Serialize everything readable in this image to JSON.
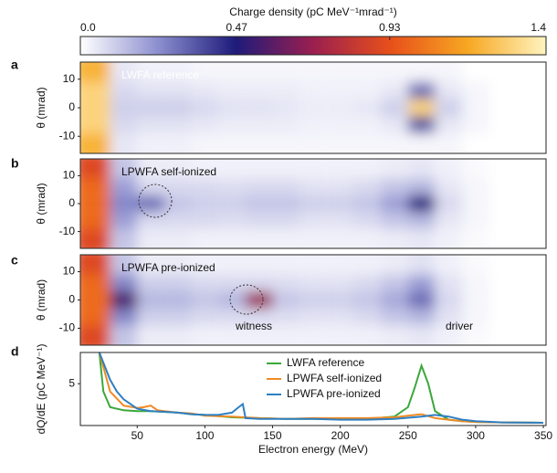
{
  "chart_data": [
    {
      "type": "colorbar",
      "title": "Charge density (pC MeV⁻¹mrad⁻¹)",
      "xlim": [
        0,
        1.4
      ],
      "xticks": [
        {
          "value": 0,
          "label": "0.0"
        },
        0.47,
        0.93,
        1.4
      ],
      "colormap": [
        "#ffffff",
        "#8c8fcf",
        "#1e1b7a",
        "#9b1f4f",
        "#e8501a",
        "#f7a823",
        "#fff4c0"
      ]
    },
    {
      "type": "heatmap",
      "label": "a",
      "annotation": "LWFA reference",
      "ylabel": "θ (mrad)",
      "x": [
        20,
        40,
        60,
        80,
        100,
        120,
        140,
        160,
        180,
        200,
        220,
        240,
        260,
        280,
        300,
        320,
        340
      ],
      "y": [
        12,
        6,
        0,
        -6,
        -12
      ],
      "values": [
        [
          1.2,
          0.05,
          0.03,
          0.03,
          0.02,
          0.02,
          0.02,
          0.02,
          0.02,
          0.02,
          0.02,
          0.02,
          0.02,
          0.02,
          0,
          0,
          0
        ],
        [
          1.3,
          0.08,
          0.06,
          0.06,
          0.05,
          0.04,
          0.04,
          0.04,
          0.03,
          0.03,
          0.03,
          0.05,
          0.3,
          0.05,
          0.02,
          0,
          0
        ],
        [
          1.3,
          0.1,
          0.1,
          0.1,
          0.08,
          0.06,
          0.06,
          0.05,
          0.04,
          0.04,
          0.05,
          0.1,
          1.3,
          0.1,
          0.02,
          0,
          0
        ],
        [
          1.3,
          0.08,
          0.06,
          0.06,
          0.05,
          0.04,
          0.04,
          0.04,
          0.03,
          0.03,
          0.03,
          0.05,
          0.35,
          0.05,
          0.02,
          0,
          0
        ],
        [
          1.2,
          0.05,
          0.03,
          0.03,
          0.02,
          0.02,
          0.02,
          0.02,
          0.02,
          0.02,
          0.02,
          0.02,
          0.02,
          0.02,
          0,
          0,
          0
        ]
      ],
      "xlim": [
        8,
        352
      ],
      "ylim": [
        -16,
        16
      ],
      "yticks": [
        10,
        0,
        -10
      ]
    },
    {
      "type": "heatmap",
      "label": "b",
      "annotation": "LPWFA self-ionized",
      "ylabel": "θ (mrad)",
      "x": [
        20,
        40,
        60,
        80,
        100,
        120,
        140,
        160,
        180,
        200,
        220,
        240,
        260,
        280,
        300,
        320,
        340
      ],
      "y": [
        12,
        6,
        0,
        -6,
        -12
      ],
      "values": [
        [
          0.9,
          0.12,
          0.04,
          0.04,
          0.03,
          0.03,
          0.03,
          0.03,
          0.03,
          0.03,
          0.03,
          0.04,
          0.05,
          0.03,
          0.01,
          0,
          0
        ],
        [
          1.0,
          0.2,
          0.08,
          0.08,
          0.08,
          0.07,
          0.08,
          0.08,
          0.06,
          0.06,
          0.08,
          0.12,
          0.15,
          0.05,
          0.02,
          0,
          0
        ],
        [
          1.0,
          0.25,
          0.3,
          0.12,
          0.1,
          0.1,
          0.12,
          0.12,
          0.1,
          0.1,
          0.12,
          0.2,
          0.45,
          0.08,
          0.02,
          0,
          0
        ],
        [
          1.0,
          0.2,
          0.08,
          0.08,
          0.08,
          0.07,
          0.08,
          0.08,
          0.06,
          0.06,
          0.08,
          0.12,
          0.15,
          0.05,
          0.02,
          0,
          0
        ],
        [
          0.9,
          0.12,
          0.04,
          0.04,
          0.03,
          0.03,
          0.03,
          0.03,
          0.03,
          0.03,
          0.03,
          0.04,
          0.05,
          0.03,
          0.01,
          0,
          0
        ]
      ],
      "xlim": [
        8,
        352
      ],
      "ylim": [
        -16,
        16
      ],
      "yticks": [
        10,
        0,
        -10
      ]
    },
    {
      "type": "heatmap",
      "label": "c",
      "annotation": "LPWFA pre-ionized",
      "ylabel": "θ (mrad)",
      "annotations": [
        "witness",
        "driver"
      ],
      "x": [
        20,
        40,
        60,
        80,
        100,
        120,
        140,
        160,
        180,
        200,
        220,
        240,
        260,
        280,
        300,
        320,
        340
      ],
      "y": [
        12,
        6,
        0,
        -6,
        -12
      ],
      "values": [
        [
          0.9,
          0.12,
          0.04,
          0.04,
          0.03,
          0.03,
          0.03,
          0.03,
          0.03,
          0.03,
          0.03,
          0.04,
          0.06,
          0.03,
          0.01,
          0,
          0
        ],
        [
          1.0,
          0.25,
          0.1,
          0.1,
          0.08,
          0.08,
          0.08,
          0.07,
          0.06,
          0.06,
          0.08,
          0.12,
          0.2,
          0.06,
          0.02,
          0,
          0
        ],
        [
          1.0,
          0.55,
          0.15,
          0.15,
          0.12,
          0.15,
          0.7,
          0.12,
          0.1,
          0.1,
          0.12,
          0.18,
          0.3,
          0.08,
          0.02,
          0,
          0
        ],
        [
          1.0,
          0.25,
          0.1,
          0.1,
          0.08,
          0.08,
          0.08,
          0.07,
          0.06,
          0.06,
          0.08,
          0.12,
          0.15,
          0.06,
          0.02,
          0,
          0
        ],
        [
          0.9,
          0.12,
          0.04,
          0.04,
          0.03,
          0.03,
          0.03,
          0.03,
          0.03,
          0.03,
          0.03,
          0.04,
          0.05,
          0.03,
          0.01,
          0,
          0
        ]
      ],
      "xlim": [
        8,
        352
      ],
      "ylim": [
        -16,
        16
      ],
      "yticks": [
        10,
        0,
        -10
      ]
    },
    {
      "type": "line",
      "label": "d",
      "ylabel": "dQ/dE (pC MeV⁻¹)",
      "xlabel": "Electron energy (MeV)",
      "xlim": [
        8,
        352
      ],
      "ylim": [
        0,
        9
      ],
      "xticks": [
        50,
        100,
        150,
        200,
        250,
        300,
        350
      ],
      "yticks": [
        5
      ],
      "series": [
        {
          "name": "LWFA reference",
          "color": "#3aa83a",
          "x": [
            22,
            25,
            30,
            40,
            50,
            60,
            70,
            80,
            90,
            100,
            120,
            140,
            160,
            180,
            200,
            220,
            240,
            250,
            255,
            260,
            265,
            270,
            280,
            290,
            300,
            320,
            340,
            350
          ],
          "values": [
            9,
            4,
            2,
            1.6,
            1.5,
            1.5,
            1.4,
            1.3,
            1.1,
            1,
            0.7,
            0.6,
            0.5,
            0.5,
            0.5,
            0.5,
            0.8,
            2,
            4.5,
            7.3,
            5,
            1.5,
            0.4,
            0.2,
            0.1,
            0.05,
            0.02,
            0
          ]
        },
        {
          "name": "LPWFA self-ionized",
          "color": "#f08a24",
          "x": [
            22,
            30,
            40,
            50,
            55,
            60,
            65,
            70,
            80,
            90,
            100,
            120,
            140,
            160,
            180,
            200,
            220,
            240,
            250,
            260,
            270,
            280,
            290,
            300,
            320,
            350
          ],
          "values": [
            9,
            4,
            2.2,
            1.9,
            2,
            2.2,
            1.6,
            1.5,
            1.3,
            1.2,
            0.9,
            0.8,
            0.6,
            0.5,
            0.6,
            0.6,
            0.6,
            0.7,
            0.9,
            1.1,
            0.6,
            0.4,
            0.2,
            0.1,
            0.05,
            0
          ]
        },
        {
          "name": "LPWFA pre-ionized",
          "color": "#2f7fc1",
          "x": [
            22,
            30,
            35,
            40,
            50,
            60,
            70,
            80,
            90,
            100,
            110,
            120,
            125,
            128,
            130,
            140,
            160,
            180,
            200,
            220,
            240,
            260,
            270,
            280,
            290,
            300,
            320,
            350
          ],
          "values": [
            9,
            5.5,
            4,
            3,
            1.8,
            1.5,
            1.4,
            1.3,
            1.1,
            1,
            1,
            1.3,
            2,
            2.4,
            0.6,
            0.5,
            0.5,
            0.5,
            0.4,
            0.4,
            0.5,
            0.8,
            1,
            0.8,
            0.4,
            0.2,
            0.05,
            0
          ]
        }
      ]
    }
  ]
}
